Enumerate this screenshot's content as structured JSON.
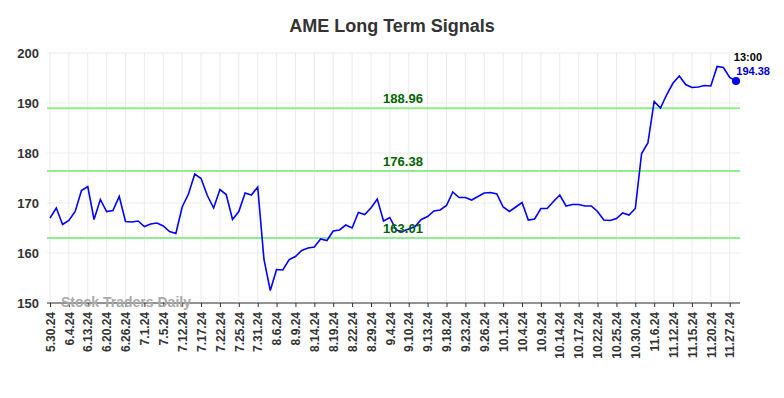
{
  "chart_data": {
    "type": "line",
    "title": "AME Long Term Signals",
    "categories": [
      "5.30.24",
      null,
      null,
      "6.4.24",
      null,
      null,
      "6.13.24",
      null,
      null,
      "6.20.24",
      null,
      null,
      "6.26.24",
      null,
      null,
      "7.1.24",
      null,
      null,
      "7.5.24",
      null,
      null,
      "7.12.24",
      null,
      null,
      "7.17.24",
      null,
      null,
      "7.22.24",
      null,
      null,
      "7.25.24",
      null,
      null,
      "7.31.24",
      null,
      null,
      "8.6.24",
      null,
      null,
      "8.9.24",
      null,
      null,
      "8.14.24",
      null,
      null,
      "8.19.24",
      null,
      null,
      "8.22.24",
      null,
      null,
      "8.29.24",
      null,
      null,
      "9.4.24",
      null,
      null,
      "9.10.24",
      null,
      null,
      "9.13.24",
      null,
      null,
      "9.18.24",
      null,
      null,
      "9.23.24",
      null,
      null,
      "9.26.24",
      null,
      null,
      "10.1.24",
      null,
      null,
      "10.4.24",
      null,
      null,
      "10.9.24",
      null,
      null,
      "10.14.24",
      null,
      null,
      "10.17.24",
      null,
      null,
      "10.22.24",
      null,
      null,
      "10.25.24",
      null,
      null,
      "10.30.24",
      null,
      null,
      "11.6.24",
      null,
      null,
      "11.12.24",
      null,
      null,
      "11.15.24",
      null,
      null,
      "11.20.24",
      null,
      null,
      "11.27.24",
      null
    ],
    "values": [
      167,
      169,
      165.7,
      166.5,
      168.3,
      172.5,
      173.3,
      166.7,
      170.7,
      168.3,
      168.5,
      171.3,
      166.3,
      166.2,
      166.4,
      165.3,
      165.8,
      166,
      165.4,
      164.3,
      163.9,
      169.2,
      171.8,
      175.8,
      174.9,
      171.5,
      169,
      172.7,
      171.7,
      166.7,
      168.3,
      172,
      171.6,
      173.2,
      158.7,
      152.5,
      156.7,
      156.6,
      158.7,
      159.3,
      160.5,
      161,
      161.2,
      162.8,
      162.5,
      164.4,
      164.6,
      165.6,
      165,
      168.1,
      167.7,
      169,
      170.8,
      166.4,
      167.1,
      164.6,
      164.3,
      164.8,
      165.3,
      166.7,
      167.3,
      168.4,
      168.6,
      169.5,
      172.2,
      171.1,
      171.1,
      170.6,
      171.3,
      172,
      172.1,
      171.8,
      169.2,
      168.3,
      169.2,
      170.1,
      166.6,
      166.8,
      168.9,
      168.9,
      170.3,
      171.6,
      169.4,
      169.7,
      169.7,
      169.4,
      169.4,
      168.3,
      166.6,
      166.5,
      166.9,
      168,
      167.6,
      168.9,
      179.9,
      182,
      190.3,
      189,
      191.7,
      194,
      195.4,
      193.7,
      193.1,
      193.2,
      193.5,
      193.4,
      197.3,
      197.1,
      195.1,
      194.38
    ],
    "color": "#0000ff",
    "ylim": [
      150,
      200
    ],
    "yticks": [
      150,
      160,
      170,
      180,
      190,
      200
    ],
    "grid": true,
    "reference_lines": [
      {
        "value": 188.96
      },
      {
        "value": 176.38
      },
      {
        "value": 163.01
      }
    ],
    "annotations": [
      {
        "text": "13:00"
      },
      {
        "text": "Stock Traders Daily"
      }
    ]
  }
}
